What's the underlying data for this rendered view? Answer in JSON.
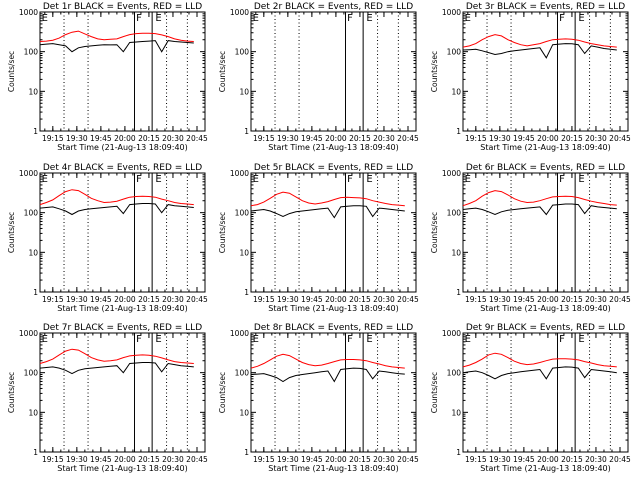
{
  "window": {
    "title": ""
  },
  "chart_data": {
    "type": "line",
    "layout": "3x3 grid of panels",
    "yscale": "log",
    "ylim": [
      1,
      1000
    ],
    "xlim": [
      "19:07",
      "20:50"
    ],
    "ylabel": "Counts/sec",
    "xlabel": "Start Time (21-Aug-13 18:09:40)",
    "xtick_labels": [
      "19:15",
      "19:30",
      "19:45",
      "20:00",
      "20:15",
      "20:30",
      "20:45"
    ],
    "ytick_labels": [
      "1",
      "10",
      "100",
      "1000"
    ],
    "colors": {
      "events": "#000000",
      "lld": "#ff0000"
    },
    "panels": [
      {
        "title": "Det 1r BLACK = Events, RED = LLD",
        "has_data": true,
        "events": [
          150,
          155,
          160,
          150,
          140,
          100,
          125,
          135,
          140,
          145,
          150,
          148,
          150,
          100,
          170,
          175,
          180,
          185,
          190,
          100,
          190,
          180,
          175,
          170,
          165
        ],
        "lld": [
          180,
          185,
          195,
          220,
          270,
          310,
          330,
          280,
          240,
          210,
          200,
          205,
          210,
          240,
          270,
          285,
          290,
          290,
          285,
          265,
          240,
          210,
          195,
          185,
          180
        ]
      },
      {
        "title": "Det 2r BLACK = Events, RED = LLD",
        "has_data": false,
        "events": [],
        "lld": []
      },
      {
        "title": "Det 3r BLACK = Events, RED = LLD",
        "has_data": true,
        "events": [
          110,
          112,
          115,
          105,
          95,
          85,
          90,
          100,
          105,
          110,
          115,
          120,
          125,
          70,
          150,
          155,
          160,
          158,
          150,
          90,
          140,
          130,
          120,
          115,
          110
        ],
        "lld": [
          130,
          140,
          160,
          200,
          240,
          270,
          250,
          200,
          170,
          150,
          140,
          150,
          160,
          180,
          200,
          205,
          210,
          205,
          195,
          175,
          160,
          150,
          140,
          135,
          130
        ]
      },
      {
        "title": "Det 4r BLACK = Events, RED = LLD",
        "has_data": true,
        "events": [
          130,
          135,
          140,
          125,
          110,
          90,
          110,
          120,
          125,
          130,
          135,
          140,
          145,
          95,
          160,
          165,
          170,
          170,
          165,
          100,
          160,
          150,
          145,
          140,
          135
        ],
        "lld": [
          160,
          180,
          210,
          270,
          340,
          380,
          360,
          290,
          230,
          200,
          180,
          185,
          195,
          220,
          245,
          255,
          260,
          255,
          245,
          220,
          200,
          180,
          170,
          165,
          160
        ]
      },
      {
        "title": "Det 5r BLACK = Events, RED = LLD",
        "has_data": true,
        "events": [
          110,
          115,
          120,
          110,
          95,
          80,
          95,
          105,
          110,
          115,
          120,
          125,
          130,
          75,
          140,
          145,
          150,
          150,
          145,
          80,
          130,
          125,
          120,
          115,
          110
        ],
        "lld": [
          150,
          160,
          185,
          230,
          290,
          330,
          310,
          250,
          200,
          175,
          165,
          175,
          190,
          215,
          240,
          245,
          240,
          235,
          225,
          200,
          185,
          170,
          160,
          155,
          150
        ]
      },
      {
        "title": "Det 6r BLACK = Events, RED = LLD",
        "has_data": true,
        "events": [
          120,
          125,
          130,
          120,
          105,
          90,
          105,
          115,
          120,
          125,
          130,
          135,
          140,
          90,
          155,
          160,
          165,
          165,
          160,
          95,
          150,
          140,
          135,
          130,
          125
        ],
        "lld": [
          150,
          170,
          200,
          260,
          320,
          360,
          340,
          280,
          225,
          195,
          180,
          185,
          200,
          225,
          250,
          255,
          260,
          255,
          240,
          215,
          195,
          180,
          170,
          160,
          155
        ]
      },
      {
        "title": "Det 7r BLACK = Events, RED = LLD",
        "has_data": true,
        "events": [
          130,
          135,
          140,
          130,
          115,
          95,
          115,
          125,
          130,
          135,
          140,
          145,
          150,
          100,
          170,
          175,
          180,
          180,
          175,
          105,
          170,
          160,
          150,
          145,
          140
        ],
        "lld": [
          170,
          190,
          220,
          280,
          350,
          390,
          370,
          300,
          240,
          210,
          195,
          200,
          210,
          240,
          265,
          275,
          280,
          275,
          260,
          235,
          210,
          190,
          180,
          175,
          170
        ]
      },
      {
        "title": "Det 8r BLACK = Events, RED = LLD",
        "has_data": true,
        "events": [
          90,
          92,
          95,
          85,
          75,
          60,
          75,
          85,
          90,
          95,
          100,
          105,
          110,
          60,
          120,
          125,
          130,
          128,
          120,
          70,
          110,
          105,
          100,
          95,
          92
        ],
        "lld": [
          130,
          145,
          170,
          210,
          260,
          290,
          270,
          220,
          180,
          160,
          150,
          155,
          170,
          190,
          210,
          215,
          215,
          210,
          200,
          180,
          165,
          150,
          140,
          135,
          130
        ]
      },
      {
        "title": "Det 9r BLACK = Events, RED = LLD",
        "has_data": true,
        "events": [
          100,
          105,
          110,
          100,
          85,
          70,
          85,
          95,
          100,
          105,
          110,
          115,
          120,
          70,
          130,
          135,
          140,
          138,
          130,
          75,
          120,
          115,
          110,
          105,
          100
        ],
        "lld": [
          140,
          155,
          180,
          220,
          280,
          310,
          290,
          240,
          195,
          170,
          160,
          165,
          180,
          200,
          220,
          225,
          225,
          220,
          210,
          190,
          175,
          160,
          150,
          145,
          140
        ]
      }
    ],
    "event_times": [
      "19:07",
      "19:11",
      "19:15",
      "19:19",
      "19:23",
      "19:27",
      "19:31",
      "19:35",
      "19:39",
      "19:43",
      "19:47",
      "19:51",
      "19:55",
      "19:59",
      "20:03",
      "20:07",
      "20:11",
      "20:15",
      "20:19",
      "20:23",
      "20:27",
      "20:31",
      "20:35",
      "20:39",
      "20:43"
    ],
    "markers": {
      "dotted_times": [
        "19:22",
        "19:37",
        "20:26",
        "20:39"
      ],
      "solid_times": [
        "20:06",
        "20:17"
      ],
      "flags": [
        {
          "time": "19:08",
          "label": "E"
        },
        {
          "time": "20:07",
          "label": "F"
        },
        {
          "time": "20:19",
          "label": "E"
        }
      ]
    }
  }
}
